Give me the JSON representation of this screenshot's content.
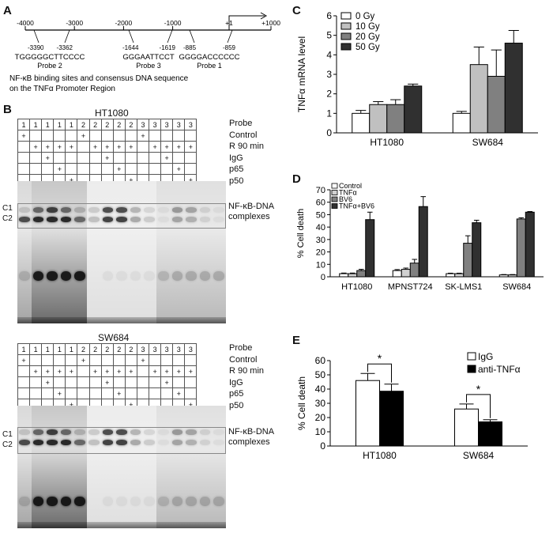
{
  "panelA": {
    "label": "A",
    "ticks": [
      "-4000",
      "-3000",
      "-2000",
      "-1000",
      "+1",
      "+1000"
    ],
    "probes": [
      {
        "start": "-3390",
        "end": "-3362",
        "seq": "TGGGGGCTTCCCC",
        "name": "Probe 2"
      },
      {
        "start": "-1644",
        "end": "-1619",
        "seq": "GGGAATTCCT",
        "name": "Probe 3"
      },
      {
        "start": "-885",
        "end": "-859",
        "seq": "GGGGACCCCCC",
        "name": "Probe 1"
      }
    ],
    "caption_line1": "NF-κB binding sites and consensus DNA sequence",
    "caption_line2": "on the TNFα Promoter Region"
  },
  "panelB": {
    "label": "B",
    "gels": [
      {
        "title": "HT1080",
        "annotation_line1": "NF-κB-DNA",
        "annotation_line2": "complexes",
        "c1": "C1",
        "c2": "C2"
      },
      {
        "title": "SW684",
        "annotation_line1": "NF-κB-DNA",
        "annotation_line2": "complexes",
        "c1": "C1",
        "c2": "C2"
      }
    ],
    "row_labels": [
      "Probe",
      "Control",
      "R 90 min",
      "IgG",
      "p65",
      "p50"
    ],
    "probe_row": [
      "1",
      "1",
      "1",
      "1",
      "1",
      "2",
      "2",
      "2",
      "2",
      "2",
      "3",
      "3",
      "3",
      "3",
      "3"
    ],
    "control_row": [
      "+",
      "",
      "",
      "",
      "",
      "+",
      "",
      "",
      "",
      "",
      "+",
      "",
      "",
      "",
      ""
    ],
    "r90_row": [
      "",
      "+",
      "+",
      "+",
      "+",
      "",
      "+",
      "+",
      "+",
      "+",
      "",
      "+",
      "+",
      "+",
      "+"
    ],
    "igg_row": [
      "",
      "",
      "+",
      "",
      "",
      "",
      "",
      "+",
      "",
      "",
      "",
      "",
      "+",
      "",
      ""
    ],
    "p65_row": [
      "",
      "",
      "",
      "+",
      "",
      "",
      "",
      "",
      "+",
      "",
      "",
      "",
      "",
      "+",
      ""
    ],
    "p50_row": [
      "",
      "",
      "",
      "",
      "+",
      "",
      "",
      "",
      "",
      "+",
      "",
      "",
      "",
      "",
      "+"
    ]
  },
  "panelC": {
    "label": "C",
    "chart_data": {
      "type": "bar",
      "categories": [
        "HT1080",
        "SW684"
      ],
      "series": [
        {
          "name": "0 Gy",
          "values": [
            1.0,
            1.0
          ],
          "errors": [
            0.15,
            0.1
          ],
          "color": "#ffffff"
        },
        {
          "name": "10 Gy",
          "values": [
            1.45,
            3.5
          ],
          "errors": [
            0.15,
            0.9
          ],
          "color": "#c0c0c0"
        },
        {
          "name": "20 Gy",
          "values": [
            1.45,
            2.9
          ],
          "errors": [
            0.25,
            1.35
          ],
          "color": "#808080"
        },
        {
          "name": "50 Gy",
          "values": [
            2.4,
            4.6
          ],
          "errors": [
            0.1,
            0.65
          ],
          "color": "#303030"
        }
      ],
      "ylabel": "TNFα mRNA level",
      "ylim": [
        0,
        6
      ],
      "yticks": [
        "0",
        "1",
        "2",
        "3",
        "4",
        "5",
        "6"
      ],
      "legend": "top-left"
    }
  },
  "panelD": {
    "label": "D",
    "chart_data": {
      "type": "bar",
      "categories": [
        "HT1080",
        "MPNST724",
        "SK-LMS1",
        "SW684"
      ],
      "series": [
        {
          "name": "Control",
          "values": [
            2.5,
            5,
            2.5,
            1.5
          ],
          "errors": [
            0.5,
            0.8,
            0.4,
            0.3
          ],
          "color": "#ffffff"
        },
        {
          "name": "TNFα",
          "values": [
            2.5,
            6,
            2.5,
            1.5
          ],
          "errors": [
            0.5,
            1,
            0.4,
            0.3
          ],
          "color": "#d0d0d0"
        },
        {
          "name": "BV6",
          "values": [
            5,
            11,
            27,
            46.5
          ],
          "errors": [
            1,
            3,
            6,
            1
          ],
          "color": "#808080"
        },
        {
          "name": "TNFα+BV6",
          "values": [
            46,
            56.5,
            43.5,
            52
          ],
          "errors": [
            6,
            8,
            2,
            0.5
          ],
          "color": "#303030"
        }
      ],
      "ylabel": "% Cell death",
      "ylim": [
        0,
        70
      ],
      "yticks": [
        "0",
        "10",
        "20",
        "30",
        "40",
        "50",
        "60",
        "70"
      ],
      "legend": "top-left"
    }
  },
  "panelE": {
    "label": "E",
    "chart_data": {
      "type": "bar",
      "categories": [
        "HT1080",
        "SW684"
      ],
      "series": [
        {
          "name": "IgG",
          "values": [
            46,
            26
          ],
          "errors": [
            5,
            3.5
          ],
          "color": "#ffffff"
        },
        {
          "name": "anti-TNFα",
          "values": [
            38.5,
            17
          ],
          "errors": [
            5,
            1.5
          ],
          "color": "#000000"
        }
      ],
      "ylabel": "% Cell death",
      "ylim": [
        0,
        60
      ],
      "yticks": [
        "0",
        "10",
        "20",
        "30",
        "40",
        "50",
        "60"
      ],
      "significance": "*",
      "legend": "top-right"
    }
  }
}
